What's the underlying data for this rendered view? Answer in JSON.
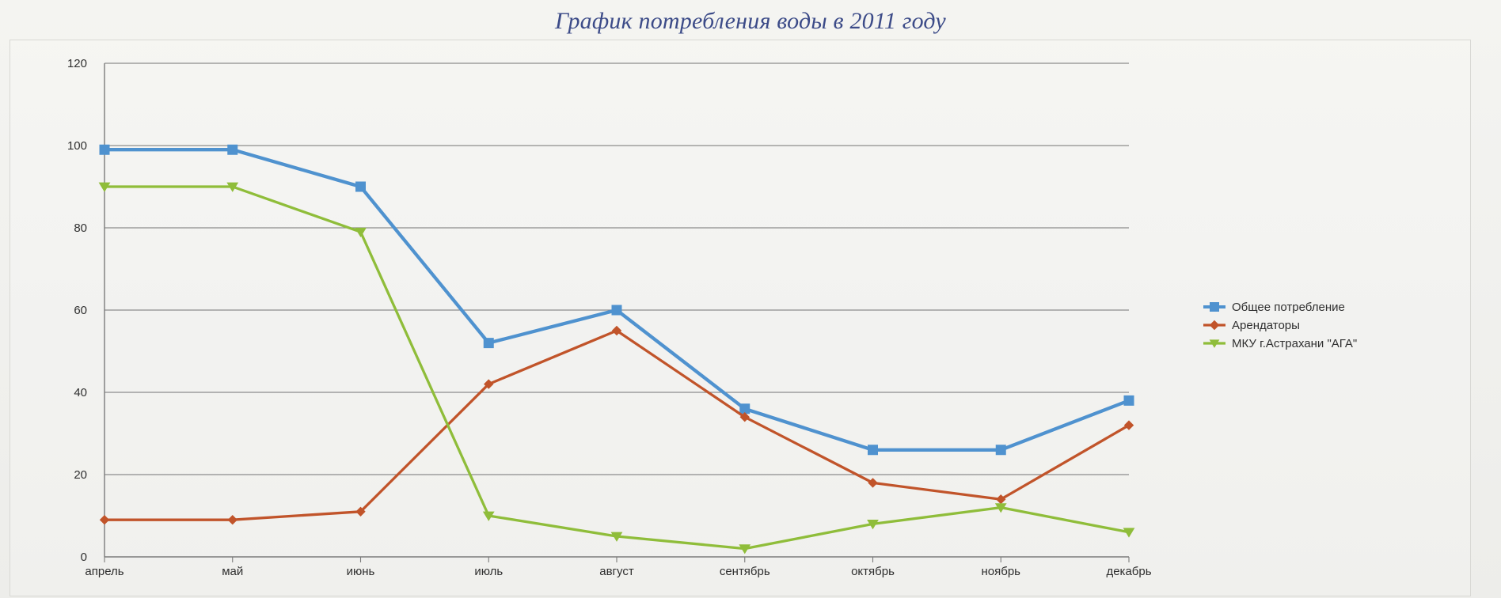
{
  "chart_data": {
    "type": "line",
    "title": "График потребления воды в 2011 году",
    "categories": [
      "апрель",
      "май",
      "июнь",
      "июль",
      "август",
      "сентябрь",
      "октябрь",
      "ноябрь",
      "декабрь"
    ],
    "ylim": [
      0,
      120
    ],
    "yticks": [
      "0",
      "20",
      "40",
      "60",
      "80",
      "100",
      "120"
    ],
    "grid": true,
    "legend_position": "right",
    "series": [
      {
        "name": "Общее потребление",
        "values": [
          99,
          99,
          90,
          52,
          60,
          36,
          26,
          26,
          38
        ],
        "color": "#4f92cf",
        "marker": "square"
      },
      {
        "name": "Арендаторы",
        "values": [
          9,
          9,
          11,
          42,
          55,
          34,
          18,
          14,
          32
        ],
        "color": "#c1542a",
        "marker": "diamond"
      },
      {
        "name": "МКУ г.Астрахани \"АГА\"",
        "values": [
          90,
          90,
          79,
          10,
          5,
          2,
          8,
          12,
          6
        ],
        "color": "#8fbd3a",
        "marker": "triangle-down"
      }
    ]
  }
}
